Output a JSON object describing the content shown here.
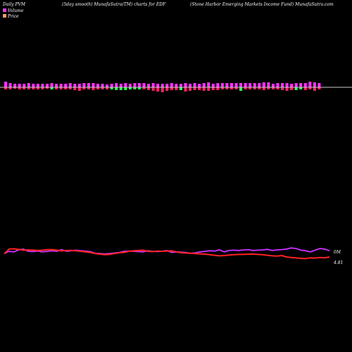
{
  "header": {
    "left": "Daily PVM",
    "middle": "(5day smooth) MunafaSutra(TM) charts for EDF",
    "right": "(Stone  Harbor Emerging Markets Income  Fund) MunafaSutra.com"
  },
  "legend": {
    "volume_label": "Volume",
    "price_label": "Price",
    "volume_color": "#ff33ff",
    "price_color": "#ff9966"
  },
  "colors": {
    "background": "#000000",
    "volume_up": "#ff33ff",
    "volume_red": "#ff2266",
    "volume_down": "#33ff55",
    "baseline": "#cccccc",
    "price_line": "#ff2222",
    "volume_line": "#cc33ff"
  },
  "chart_data": {
    "type": "bar+line",
    "volume_bars": {
      "directions": [
        1,
        1,
        1,
        1,
        1,
        1,
        1,
        1,
        1,
        1,
        -1,
        1,
        1,
        1,
        1,
        1,
        1,
        1,
        1,
        1,
        -1,
        1,
        1,
        1,
        1,
        1,
        1,
        1,
        1,
        1,
        1,
        1,
        1,
        1,
        1,
        1,
        1,
        1,
        -1,
        1,
        1,
        1,
        1,
        1,
        1,
        1,
        1,
        1,
        1,
        1,
        1,
        1,
        1,
        1,
        1,
        1,
        1,
        1,
        1,
        1,
        1,
        1,
        1,
        1,
        1,
        1,
        1,
        1,
        1
      ],
      "up_heights": [
        8,
        6,
        5,
        5,
        5,
        6,
        5,
        5,
        5,
        5,
        6,
        5,
        5,
        5,
        6,
        5,
        5,
        6,
        6,
        6,
        5,
        5,
        4,
        5,
        6,
        5,
        6,
        5,
        6,
        6,
        6,
        5,
        6,
        5,
        5,
        5,
        6,
        5,
        5,
        6,
        5,
        6,
        5,
        6,
        7,
        5,
        6,
        6,
        6,
        6,
        6,
        6,
        6,
        6,
        6,
        6,
        7,
        7,
        5,
        6,
        6,
        6,
        5,
        6,
        6,
        6,
        8,
        7,
        6
      ],
      "down_heights": [
        3,
        3,
        2,
        3,
        3,
        3,
        3,
        3,
        3,
        2,
        3,
        3,
        3,
        3,
        3,
        4,
        5,
        3,
        3,
        4,
        3,
        3,
        3,
        3,
        4,
        4,
        4,
        3,
        3,
        3,
        3,
        4,
        5,
        6,
        7,
        5,
        4,
        4,
        4,
        6,
        5,
        4,
        4,
        5,
        5,
        4,
        4,
        3,
        3,
        3,
        3,
        5,
        3,
        3,
        3,
        3,
        4,
        3,
        3,
        3,
        4,
        5,
        4,
        4,
        3,
        4,
        3,
        5,
        3
      ]
    },
    "price_series": [
      0.62,
      0.78,
      0.79,
      0.77,
      0.74,
      0.75,
      0.74,
      0.73,
      0.74,
      0.76,
      0.76,
      0.74,
      0.72,
      0.73,
      0.73,
      0.72,
      0.7,
      0.68,
      0.66,
      0.62,
      0.6,
      0.58,
      0.59,
      0.62,
      0.65,
      0.66,
      0.7,
      0.72,
      0.73,
      0.74,
      0.7,
      0.69,
      0.71,
      0.7,
      0.71,
      0.72,
      0.68,
      0.65,
      0.64,
      0.63,
      0.62,
      0.61,
      0.6,
      0.58,
      0.56,
      0.54,
      0.55,
      0.57,
      0.58,
      0.59,
      0.59,
      0.6,
      0.6,
      0.59,
      0.58,
      0.56,
      0.54,
      0.53,
      0.55,
      0.5,
      0.48,
      0.47,
      0.45,
      0.44,
      0.47,
      0.46,
      0.48,
      0.47,
      0.5
    ],
    "volume_series": [
      0.62,
      0.7,
      0.68,
      0.75,
      0.78,
      0.7,
      0.69,
      0.71,
      0.68,
      0.7,
      0.72,
      0.7,
      0.76,
      0.7,
      0.72,
      0.74,
      0.72,
      0.71,
      0.69,
      0.63,
      0.62,
      0.61,
      0.62,
      0.64,
      0.66,
      0.7,
      0.71,
      0.7,
      0.69,
      0.68,
      0.72,
      0.7,
      0.69,
      0.7,
      0.73,
      0.66,
      0.68,
      0.67,
      0.66,
      0.63,
      0.65,
      0.68,
      0.7,
      0.72,
      0.71,
      0.75,
      0.68,
      0.73,
      0.74,
      0.73,
      0.75,
      0.76,
      0.73,
      0.74,
      0.75,
      0.77,
      0.73,
      0.75,
      0.76,
      0.78,
      0.82,
      0.8,
      0.74,
      0.72,
      0.68,
      0.74,
      0.8,
      0.78,
      0.72
    ],
    "volume_value_label": "0M",
    "price_value_label": "4.81"
  }
}
